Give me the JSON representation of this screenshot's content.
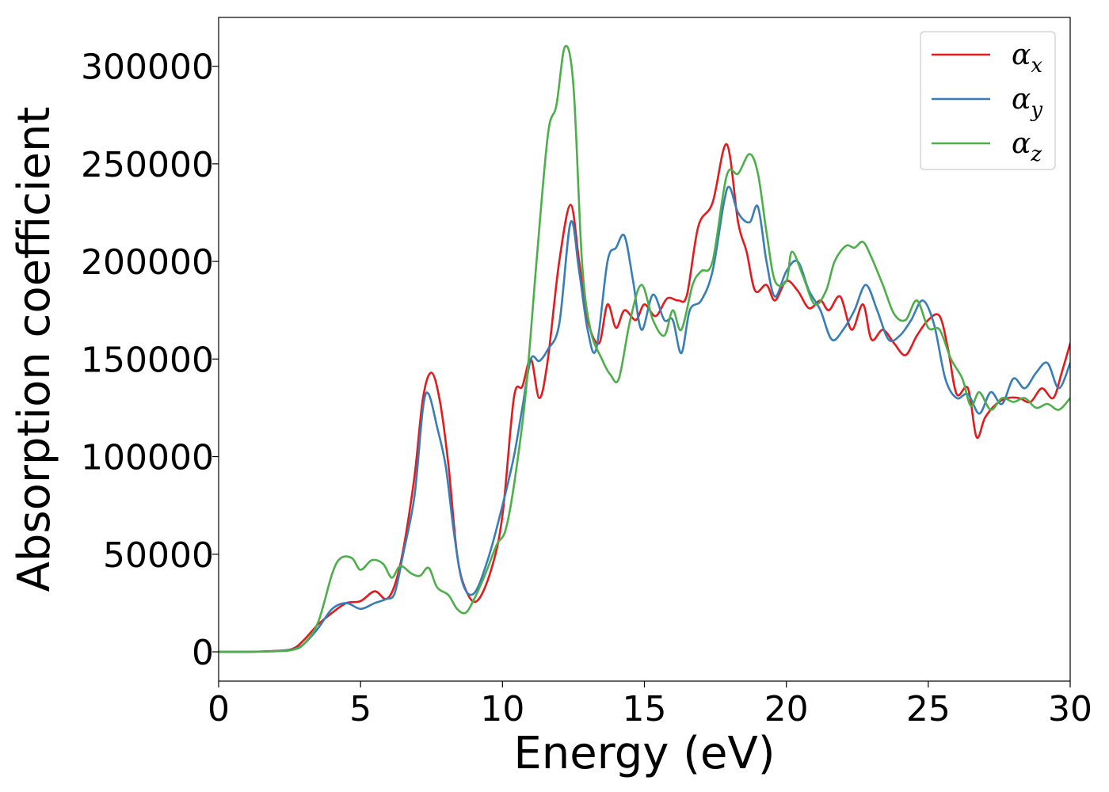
{
  "chart_data": {
    "type": "line",
    "xlabel": "Energy (eV)",
    "ylabel": "Absorption coefficient",
    "xlim": [
      0,
      30
    ],
    "ylim": [
      -15000,
      325000
    ],
    "xticks": [
      0,
      5,
      10,
      15,
      20,
      25,
      30
    ],
    "yticks": [
      0,
      50000,
      100000,
      150000,
      200000,
      250000,
      300000
    ],
    "xtick_labels": [
      "0",
      "5",
      "10",
      "15",
      "20",
      "25",
      "30"
    ],
    "ytick_labels": [
      "0",
      "50000",
      "100000",
      "150000",
      "200000",
      "250000",
      "300000"
    ],
    "grid": false,
    "legend_position": "top-right",
    "legend": [
      {
        "symbol": "α",
        "sub": "x",
        "color": "#e41a1c"
      },
      {
        "symbol": "α",
        "sub": "y",
        "color": "#377eb8"
      },
      {
        "symbol": "α",
        "sub": "z",
        "color": "#4daf4a"
      }
    ],
    "series": [
      {
        "color": "#e41a1c",
        "points": [
          [
            0,
            0
          ],
          [
            1,
            0
          ],
          [
            2,
            500
          ],
          [
            2.6,
            1500
          ],
          [
            3,
            6000
          ],
          [
            3.5,
            14000
          ],
          [
            4,
            20000
          ],
          [
            4.5,
            25000
          ],
          [
            5,
            26000
          ],
          [
            5.5,
            31000
          ],
          [
            5.9,
            27000
          ],
          [
            6.2,
            34000
          ],
          [
            6.5,
            52000
          ],
          [
            6.9,
            90000
          ],
          [
            7.2,
            130000
          ],
          [
            7.5,
            143000
          ],
          [
            7.8,
            128000
          ],
          [
            8.1,
            95000
          ],
          [
            8.4,
            50000
          ],
          [
            8.7,
            32000
          ],
          [
            9.1,
            26000
          ],
          [
            9.6,
            42000
          ],
          [
            10,
            70000
          ],
          [
            10.4,
            130000
          ],
          [
            10.7,
            136000
          ],
          [
            11,
            150000
          ],
          [
            11.3,
            130000
          ],
          [
            11.6,
            150000
          ],
          [
            12,
            200000
          ],
          [
            12.4,
            229000
          ],
          [
            12.7,
            200000
          ],
          [
            13,
            170000
          ],
          [
            13.4,
            158000
          ],
          [
            13.7,
            178000
          ],
          [
            14,
            166000
          ],
          [
            14.3,
            175000
          ],
          [
            14.7,
            170000
          ],
          [
            15,
            178000
          ],
          [
            15.4,
            172000
          ],
          [
            15.8,
            181000
          ],
          [
            16.2,
            180000
          ],
          [
            16.5,
            183000
          ],
          [
            16.9,
            218000
          ],
          [
            17.4,
            230000
          ],
          [
            17.9,
            260000
          ],
          [
            18.3,
            220000
          ],
          [
            18.6,
            205000
          ],
          [
            18.9,
            185000
          ],
          [
            19.3,
            188000
          ],
          [
            19.6,
            180000
          ],
          [
            20,
            190000
          ],
          [
            20.4,
            185000
          ],
          [
            20.8,
            176000
          ],
          [
            21.2,
            180000
          ],
          [
            21.5,
            175000
          ],
          [
            21.9,
            182000
          ],
          [
            22.3,
            165000
          ],
          [
            22.7,
            178000
          ],
          [
            23,
            160000
          ],
          [
            23.4,
            165000
          ],
          [
            23.8,
            158000
          ],
          [
            24.2,
            152000
          ],
          [
            24.6,
            162000
          ],
          [
            25,
            170000
          ],
          [
            25.4,
            172000
          ],
          [
            25.7,
            155000
          ],
          [
            26,
            132000
          ],
          [
            26.4,
            135000
          ],
          [
            26.7,
            110000
          ],
          [
            27,
            120000
          ],
          [
            27.4,
            127000
          ],
          [
            27.8,
            130000
          ],
          [
            28.2,
            130000
          ],
          [
            28.6,
            128000
          ],
          [
            29,
            135000
          ],
          [
            29.4,
            130000
          ],
          [
            29.7,
            143000
          ],
          [
            30,
            158000
          ]
        ]
      },
      {
        "color": "#377eb8",
        "points": [
          [
            0,
            0
          ],
          [
            1,
            0
          ],
          [
            2,
            400
          ],
          [
            2.6,
            1200
          ],
          [
            3,
            4000
          ],
          [
            3.5,
            12000
          ],
          [
            4,
            22000
          ],
          [
            4.5,
            25000
          ],
          [
            5,
            22000
          ],
          [
            5.5,
            25000
          ],
          [
            5.9,
            27000
          ],
          [
            6.2,
            30000
          ],
          [
            6.5,
            50000
          ],
          [
            6.9,
            80000
          ],
          [
            7.2,
            125000
          ],
          [
            7.4,
            132000
          ],
          [
            7.7,
            115000
          ],
          [
            8,
            95000
          ],
          [
            8.3,
            60000
          ],
          [
            8.6,
            35000
          ],
          [
            9,
            30000
          ],
          [
            9.5,
            48000
          ],
          [
            10,
            75000
          ],
          [
            10.4,
            100000
          ],
          [
            10.7,
            125000
          ],
          [
            11,
            150000
          ],
          [
            11.3,
            149000
          ],
          [
            11.6,
            155000
          ],
          [
            12,
            168000
          ],
          [
            12.4,
            220000
          ],
          [
            12.7,
            195000
          ],
          [
            13,
            165000
          ],
          [
            13.3,
            155000
          ],
          [
            13.7,
            200000
          ],
          [
            14,
            207000
          ],
          [
            14.3,
            213000
          ],
          [
            14.6,
            190000
          ],
          [
            14.9,
            165000
          ],
          [
            15.3,
            183000
          ],
          [
            15.7,
            170000
          ],
          [
            16,
            170000
          ],
          [
            16.3,
            153000
          ],
          [
            16.6,
            175000
          ],
          [
            17,
            180000
          ],
          [
            17.4,
            195000
          ],
          [
            17.8,
            230000
          ],
          [
            18,
            238000
          ],
          [
            18.3,
            225000
          ],
          [
            18.7,
            220000
          ],
          [
            19,
            228000
          ],
          [
            19.3,
            200000
          ],
          [
            19.6,
            182000
          ],
          [
            20,
            195000
          ],
          [
            20.4,
            200000
          ],
          [
            20.8,
            185000
          ],
          [
            21.2,
            175000
          ],
          [
            21.6,
            160000
          ],
          [
            22,
            165000
          ],
          [
            22.4,
            175000
          ],
          [
            22.8,
            188000
          ],
          [
            23.2,
            175000
          ],
          [
            23.6,
            160000
          ],
          [
            24,
            162000
          ],
          [
            24.4,
            170000
          ],
          [
            24.8,
            180000
          ],
          [
            25.2,
            168000
          ],
          [
            25.6,
            140000
          ],
          [
            26,
            130000
          ],
          [
            26.4,
            132000
          ],
          [
            26.8,
            122000
          ],
          [
            27.2,
            133000
          ],
          [
            27.6,
            127000
          ],
          [
            28,
            140000
          ],
          [
            28.4,
            135000
          ],
          [
            28.8,
            143000
          ],
          [
            29.2,
            148000
          ],
          [
            29.6,
            135000
          ],
          [
            30,
            148000
          ]
        ]
      },
      {
        "color": "#4daf4a",
        "points": [
          [
            0,
            0
          ],
          [
            1,
            0
          ],
          [
            2,
            300
          ],
          [
            2.6,
            1000
          ],
          [
            3,
            4000
          ],
          [
            3.5,
            15000
          ],
          [
            4,
            40000
          ],
          [
            4.3,
            48000
          ],
          [
            4.7,
            48000
          ],
          [
            5,
            42000
          ],
          [
            5.4,
            47000
          ],
          [
            5.8,
            45000
          ],
          [
            6.1,
            38000
          ],
          [
            6.4,
            44000
          ],
          [
            6.8,
            40000
          ],
          [
            7.1,
            39000
          ],
          [
            7.4,
            43000
          ],
          [
            7.7,
            33000
          ],
          [
            8.1,
            29000
          ],
          [
            8.4,
            22000
          ],
          [
            8.7,
            20000
          ],
          [
            9,
            27000
          ],
          [
            9.4,
            40000
          ],
          [
            9.8,
            55000
          ],
          [
            10.1,
            62000
          ],
          [
            10.4,
            85000
          ],
          [
            10.8,
            130000
          ],
          [
            11.2,
            200000
          ],
          [
            11.6,
            265000
          ],
          [
            11.9,
            280000
          ],
          [
            12.2,
            310000
          ],
          [
            12.5,
            290000
          ],
          [
            12.8,
            200000
          ],
          [
            13.1,
            165000
          ],
          [
            13.5,
            150000
          ],
          [
            13.8,
            142000
          ],
          [
            14.1,
            140000
          ],
          [
            14.5,
            170000
          ],
          [
            14.9,
            188000
          ],
          [
            15.3,
            170000
          ],
          [
            15.7,
            162000
          ],
          [
            16,
            175000
          ],
          [
            16.3,
            165000
          ],
          [
            16.7,
            188000
          ],
          [
            17,
            195000
          ],
          [
            17.4,
            200000
          ],
          [
            17.9,
            244000
          ],
          [
            18.3,
            245000
          ],
          [
            18.7,
            255000
          ],
          [
            19,
            245000
          ],
          [
            19.3,
            215000
          ],
          [
            19.6,
            190000
          ],
          [
            20,
            190000
          ],
          [
            20.2,
            205000
          ],
          [
            20.6,
            192000
          ],
          [
            21,
            178000
          ],
          [
            21.4,
            185000
          ],
          [
            21.7,
            200000
          ],
          [
            22.1,
            208000
          ],
          [
            22.4,
            207000
          ],
          [
            22.7,
            210000
          ],
          [
            23,
            202000
          ],
          [
            23.4,
            188000
          ],
          [
            23.8,
            173000
          ],
          [
            24.2,
            170000
          ],
          [
            24.6,
            180000
          ],
          [
            25,
            166000
          ],
          [
            25.4,
            165000
          ],
          [
            25.8,
            150000
          ],
          [
            26.2,
            140000
          ],
          [
            26.5,
            126000
          ],
          [
            26.8,
            133000
          ],
          [
            27.2,
            124000
          ],
          [
            27.6,
            130000
          ],
          [
            28,
            128000
          ],
          [
            28.4,
            130000
          ],
          [
            28.8,
            125000
          ],
          [
            29.2,
            127000
          ],
          [
            29.6,
            124000
          ],
          [
            30,
            130000
          ]
        ]
      }
    ]
  }
}
